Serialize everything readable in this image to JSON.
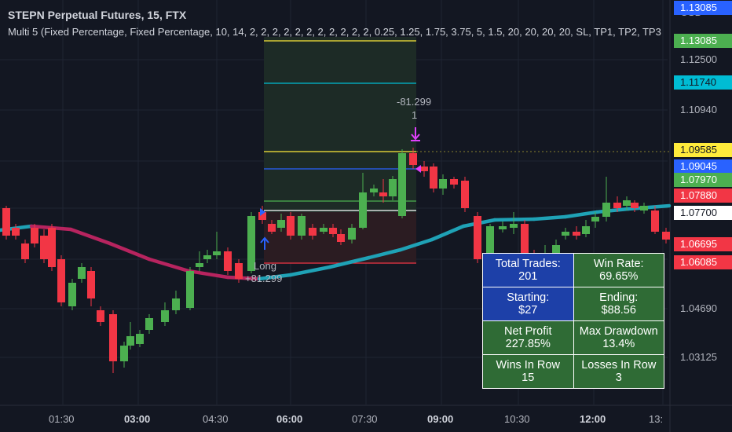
{
  "header": {
    "title": "STEPN Perpetual Futures, 15, FTX",
    "indicator": "Multi 5 (Fixed Percentage, Fixed Percentage, 10, 14, 2, 2, 2, 2, 2, 2, 2, 2, 2, 2, 2, 0.25, 1.25, 1.75, 3.75, 5, 1.5, 20, 20, 20, 20, SL, TP1, TP2, TP3"
  },
  "price_axis": {
    "currency": "USD",
    "ticks": [
      "1.12500",
      "1.10940",
      "1.04690",
      "1.03125"
    ],
    "tags": [
      {
        "label": "1.13085",
        "color": "#2962ff",
        "text_color": "#ffffff"
      },
      {
        "label": "1.13085",
        "color": "#4caf50",
        "text_color": "#ffffff"
      },
      {
        "label": "1.11740",
        "color": "#00bcd4",
        "text_color": "#131722"
      },
      {
        "label": "1.09585",
        "color": "#ffeb3b",
        "text_color": "#131722"
      },
      {
        "label": "1.09045",
        "color": "#2962ff",
        "text_color": "#ffffff"
      },
      {
        "label": "1.07970",
        "color": "#4caf50",
        "text_color": "#ffffff"
      },
      {
        "label": "1.07880",
        "color": "#f23645",
        "text_color": "#ffffff"
      },
      {
        "label": "1.07700",
        "color": "#ffffff",
        "text_color": "#131722"
      },
      {
        "label": "1.06695",
        "color": "#f23645",
        "text_color": "#ffffff"
      },
      {
        "label": "1.06085",
        "color": "#f23645",
        "text_color": "#ffffff"
      }
    ]
  },
  "time_axis": {
    "labels": [
      {
        "text": "01:30",
        "bold": false
      },
      {
        "text": "03:00",
        "bold": true
      },
      {
        "text": "04:30",
        "bold": false
      },
      {
        "text": "06:00",
        "bold": true
      },
      {
        "text": "07:30",
        "bold": false
      },
      {
        "text": "09:00",
        "bold": true
      },
      {
        "text": "10:30",
        "bold": false
      },
      {
        "text": "12:00",
        "bold": true
      },
      {
        "text": "13:",
        "bold": false
      }
    ]
  },
  "trade_labels": {
    "short_value": "-81.299",
    "short_count": "1",
    "long_label": "Long",
    "long_value": "+81.299"
  },
  "stats": {
    "total_trades_label": "Total Trades:",
    "total_trades_value": "201",
    "win_rate_label": "Win Rate:",
    "win_rate_value": "69.65%",
    "starting_label": "Starting:",
    "starting_value": "$27",
    "ending_label": "Ending:",
    "ending_value": "$88.56",
    "net_profit_label": "Net Profit",
    "net_profit_value": "227.85%",
    "max_drawdown_label": "Max Drawdown",
    "max_drawdown_value": "13.4%",
    "wins_in_row_label": "Wins In Row",
    "wins_in_row_value": "15",
    "losses_in_row_label": "Losses In Row",
    "losses_in_row_value": "3"
  },
  "colors": {
    "background": "#131722",
    "up_candle": "#4caf50",
    "down_candle": "#f23645",
    "ma_up": "#1fa2b6",
    "ma_down": "#b7245f",
    "tp_zone": "#1d2b26",
    "sl_zone": "#2b1c22"
  }
}
